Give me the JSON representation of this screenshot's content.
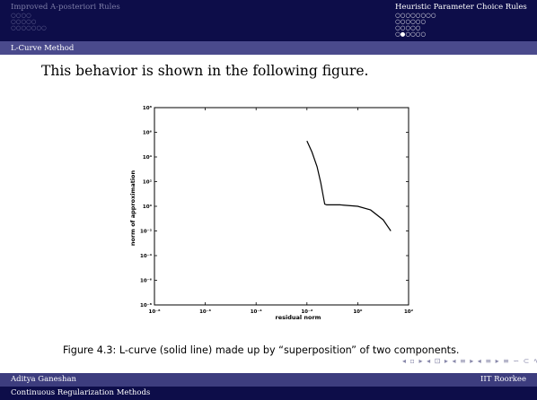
{
  "header": {
    "left_section": "Improved A-posteriori Rules",
    "left_dots": [
      "○○○○",
      "○○○○○",
      "○○○○○○○"
    ],
    "right_section": "Heuristic Parameter Choice Rules",
    "right_dots": [
      "○○○○○○○○",
      "○○○○○○",
      "○○○○○",
      "○●○○○○"
    ],
    "subsection": "L-Curve Method"
  },
  "slide": {
    "intro": "This behavior is shown in the following figure.",
    "caption": "Figure 4.3: L-curve (solid line) made up by “superposition” of two components."
  },
  "nav_symbols": "◂ ▫ ▸ ◂ ⊡ ▸ ◂ ≡ ▸ ◂ ≡ ▸  ≡  ∽ ⊂ ∿",
  "footer": {
    "author": "Aditya Ganeshan",
    "institute": "IIT Roorkee",
    "title": "Continuous Regularization Methods"
  },
  "chart_data": {
    "type": "line",
    "xlabel": "residual norm",
    "ylabel": "norm of approximation",
    "xscale": "log",
    "yscale": "log",
    "xlim": [
      1e-08,
      100.0
    ],
    "ylim": [
      1e-08,
      100000000.0
    ],
    "x_ticks": [
      "10⁻⁸",
      "10⁻⁶",
      "10⁻⁴",
      "10⁻²",
      "10⁰",
      "10²"
    ],
    "y_ticks": [
      "10⁸",
      "10⁶",
      "10⁴",
      "10²",
      "10⁰",
      "10⁻²",
      "10⁻⁴",
      "10⁻⁶",
      "10⁻⁸"
    ],
    "series": [
      {
        "x": [
          0.01,
          0.0158,
          0.025,
          0.035,
          0.05,
          0.06,
          0.2,
          1.0,
          3.2,
          10,
          20
        ],
        "y": [
          200000,
          25000,
          1600,
          80,
          1.5,
          1.3,
          1.3,
          1.0,
          0.5,
          0.08,
          0.01
        ]
      }
    ],
    "grid": false,
    "line_color": "#000000"
  }
}
